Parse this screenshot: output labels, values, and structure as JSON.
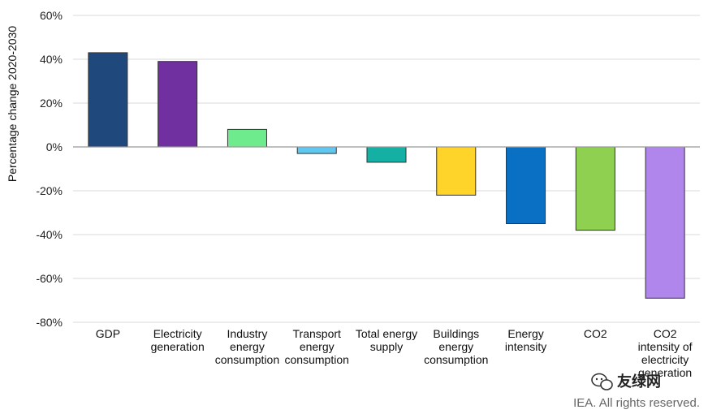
{
  "chart_data": {
    "type": "bar",
    "title": "",
    "xlabel": "",
    "ylabel": "Percentage change 2020-2030",
    "ylim": [
      -80,
      60
    ],
    "yticks": [
      60,
      40,
      20,
      0,
      -20,
      -40,
      -60,
      -80
    ],
    "ytick_labels": [
      "60%",
      "40%",
      "20%",
      "0%",
      "-20%",
      "-40%",
      "-60%",
      "-80%"
    ],
    "grid": true,
    "categories": [
      [
        "GDP"
      ],
      [
        "Electricity",
        "generation"
      ],
      [
        "Industry",
        "energy",
        "consumption"
      ],
      [
        "Transport",
        "energy",
        "consumption"
      ],
      [
        "Total energy",
        "supply"
      ],
      [
        "Buildings",
        "energy",
        "consumption"
      ],
      [
        "Energy",
        "intensity"
      ],
      [
        "CO2"
      ],
      [
        "CO2",
        "intensity of",
        "electricity",
        "generation"
      ]
    ],
    "values": [
      43,
      39,
      8,
      -3,
      -7,
      -22,
      -35,
      -38,
      -69
    ],
    "colors": [
      "#1f497d",
      "#7030a0",
      "#6eeb8c",
      "#60c8f0",
      "#14b0a4",
      "#ffd42a",
      "#0a70c4",
      "#90d050",
      "#b085ec"
    ]
  },
  "credit": "IEA. All rights reserved.",
  "wechat_brand": "友绿网"
}
